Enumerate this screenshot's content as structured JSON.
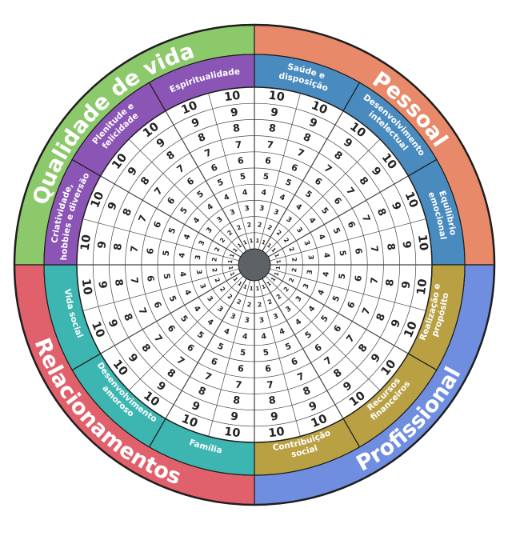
{
  "colors": {
    "qualidade": "#8cc96b",
    "pessoal": "#e8896a",
    "profissional": "#6f8ee0",
    "relacionamentos": "#e0606b",
    "outline": "#1e1e1e",
    "hub": "#5d6266"
  },
  "quadrants": [
    {
      "label": "Qualidade de vida",
      "color": "qualidade",
      "center_deg": 315
    },
    {
      "label": "Pessoal",
      "color": "pessoal",
      "center_deg": 45
    },
    {
      "label": "Profissional",
      "color": "profissional",
      "center_deg": 135
    },
    {
      "label": "Relacionamentos",
      "color": "relacionamentos",
      "center_deg": 225
    }
  ],
  "areas": [
    {
      "lines": [
        "Saúde e",
        "disposição"
      ],
      "color": "#4a8bbf"
    },
    {
      "lines": [
        "Desenvolvimento",
        "intelectual"
      ],
      "color": "#4a8bbf"
    },
    {
      "lines": [
        "Equilíbrio",
        "emocional"
      ],
      "color": "#4a8bbf"
    },
    {
      "lines": [
        "Realização e",
        "propósito"
      ],
      "color": "#b8a043"
    },
    {
      "lines": [
        "Recursos",
        "financeiros"
      ],
      "color": "#b8a043"
    },
    {
      "lines": [
        "Contribuição",
        "social"
      ],
      "color": "#b8a043"
    },
    {
      "lines": [
        "Família"
      ],
      "color": "#3db5b0"
    },
    {
      "lines": [
        "Desenvolvimento",
        "amoroso"
      ],
      "color": "#3db5b0"
    },
    {
      "lines": [
        "Vida social"
      ],
      "color": "#3db5b0"
    },
    {
      "lines": [
        "Criatividade,",
        "hobbies e diversão"
      ],
      "color": "#8a55b5"
    },
    {
      "lines": [
        "Plenitude e",
        "felicidade"
      ],
      "color": "#8a55b5"
    },
    {
      "lines": [
        "Espiritualidade"
      ],
      "color": "#8a55b5"
    }
  ],
  "scale": [
    "1",
    "2",
    "3",
    "4",
    "5",
    "6",
    "7",
    "8",
    "9",
    "10"
  ]
}
